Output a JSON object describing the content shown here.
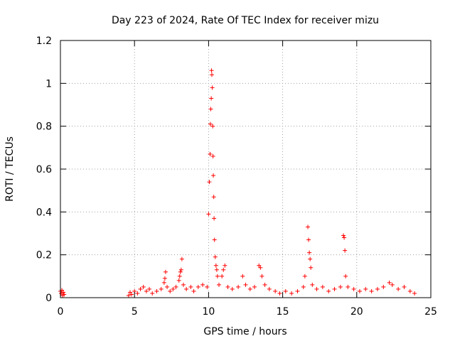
{
  "chart_data": {
    "type": "scatter",
    "title": "Day 223 of 2024, Rate Of TEC Index for receiver mizu",
    "xlabel": "GPS time / hours",
    "ylabel": "ROTI / TECUs",
    "xlim": [
      0,
      25
    ],
    "ylim": [
      0,
      1.2
    ],
    "xticks": [
      0,
      5,
      10,
      15,
      20,
      25
    ],
    "xtick_labels": [
      "0",
      "5",
      "10",
      "15",
      "20",
      "25"
    ],
    "yticks": [
      0,
      0.2,
      0.4,
      0.6,
      0.8,
      1,
      1.2
    ],
    "ytick_labels": [
      "0",
      "0.2",
      "0.4",
      "0.6",
      "0.8",
      "1",
      "1.2"
    ],
    "grid": true,
    "marker": "+",
    "color": "#ff0000",
    "series": [
      {
        "points": [
          [
            0.0,
            0.03
          ],
          [
            0.05,
            0.02
          ],
          [
            0.1,
            0.035
          ],
          [
            0.15,
            0.01
          ],
          [
            0.2,
            0.025
          ],
          [
            0.25,
            0.015
          ],
          [
            4.6,
            0.01
          ],
          [
            4.7,
            0.025
          ],
          [
            4.8,
            0.015
          ],
          [
            5.0,
            0.03
          ],
          [
            5.2,
            0.02
          ],
          [
            5.4,
            0.04
          ],
          [
            5.6,
            0.05
          ],
          [
            5.8,
            0.03
          ],
          [
            6.0,
            0.04
          ],
          [
            6.2,
            0.02
          ],
          [
            6.5,
            0.03
          ],
          [
            6.8,
            0.04
          ],
          [
            7.0,
            0.07
          ],
          [
            7.05,
            0.09
          ],
          [
            7.1,
            0.12
          ],
          [
            7.2,
            0.05
          ],
          [
            7.4,
            0.03
          ],
          [
            7.6,
            0.04
          ],
          [
            7.8,
            0.05
          ],
          [
            8.0,
            0.08
          ],
          [
            8.05,
            0.1
          ],
          [
            8.1,
            0.12
          ],
          [
            8.15,
            0.13
          ],
          [
            8.2,
            0.18
          ],
          [
            8.3,
            0.06
          ],
          [
            8.5,
            0.04
          ],
          [
            8.8,
            0.05
          ],
          [
            9.0,
            0.03
          ],
          [
            9.3,
            0.05
          ],
          [
            9.6,
            0.06
          ],
          [
            9.9,
            0.05
          ],
          [
            10.0,
            0.39
          ],
          [
            10.05,
            0.54
          ],
          [
            10.1,
            0.67
          ],
          [
            10.12,
            0.81
          ],
          [
            10.15,
            0.88
          ],
          [
            10.18,
            0.93
          ],
          [
            10.2,
            1.06
          ],
          [
            10.22,
            1.04
          ],
          [
            10.25,
            0.98
          ],
          [
            10.28,
            0.8
          ],
          [
            10.3,
            0.66
          ],
          [
            10.32,
            0.57
          ],
          [
            10.35,
            0.47
          ],
          [
            10.37,
            0.37
          ],
          [
            10.4,
            0.27
          ],
          [
            10.45,
            0.19
          ],
          [
            10.5,
            0.15
          ],
          [
            10.55,
            0.13
          ],
          [
            10.6,
            0.1
          ],
          [
            10.7,
            0.06
          ],
          [
            10.9,
            0.1
          ],
          [
            11.0,
            0.13
          ],
          [
            11.1,
            0.15
          ],
          [
            11.3,
            0.05
          ],
          [
            11.6,
            0.04
          ],
          [
            12.0,
            0.05
          ],
          [
            12.3,
            0.1
          ],
          [
            12.5,
            0.06
          ],
          [
            12.8,
            0.04
          ],
          [
            13.1,
            0.05
          ],
          [
            13.4,
            0.15
          ],
          [
            13.5,
            0.14
          ],
          [
            13.6,
            0.1
          ],
          [
            13.8,
            0.06
          ],
          [
            14.1,
            0.04
          ],
          [
            14.5,
            0.03
          ],
          [
            14.8,
            0.02
          ],
          [
            15.2,
            0.03
          ],
          [
            15.6,
            0.02
          ],
          [
            16.0,
            0.03
          ],
          [
            16.4,
            0.05
          ],
          [
            16.5,
            0.1
          ],
          [
            16.7,
            0.33
          ],
          [
            16.75,
            0.27
          ],
          [
            16.8,
            0.21
          ],
          [
            16.85,
            0.18
          ],
          [
            16.9,
            0.14
          ],
          [
            17.0,
            0.06
          ],
          [
            17.3,
            0.04
          ],
          [
            17.7,
            0.05
          ],
          [
            18.1,
            0.03
          ],
          [
            18.5,
            0.04
          ],
          [
            18.9,
            0.05
          ],
          [
            19.1,
            0.29
          ],
          [
            19.15,
            0.28
          ],
          [
            19.2,
            0.22
          ],
          [
            19.25,
            0.1
          ],
          [
            19.4,
            0.05
          ],
          [
            19.8,
            0.04
          ],
          [
            20.2,
            0.03
          ],
          [
            20.6,
            0.04
          ],
          [
            21.0,
            0.03
          ],
          [
            21.4,
            0.04
          ],
          [
            21.8,
            0.05
          ],
          [
            22.2,
            0.07
          ],
          [
            22.4,
            0.06
          ],
          [
            22.8,
            0.04
          ],
          [
            23.2,
            0.05
          ],
          [
            23.6,
            0.03
          ],
          [
            23.9,
            0.02
          ]
        ]
      }
    ]
  }
}
